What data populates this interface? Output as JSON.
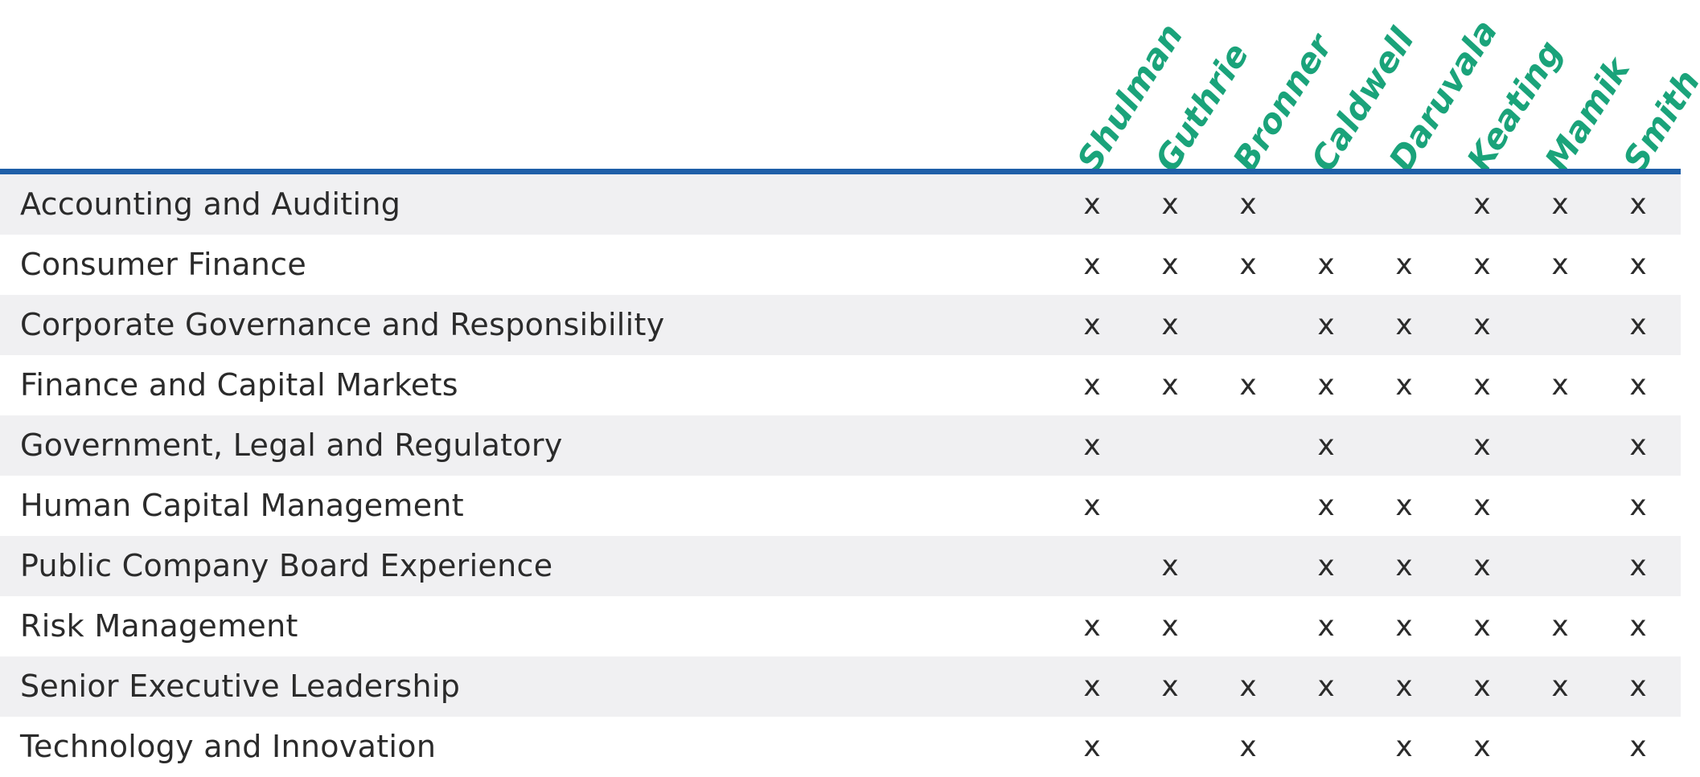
{
  "colors": {
    "header_text": "#1aa37a",
    "rule": "#1f5fa8",
    "stripe": "#f0f0f2",
    "body_text": "#2b2b2b"
  },
  "mark_symbol": "x",
  "directors": [
    "Shulman",
    "Guthrie",
    "Bronner",
    "Caldwell",
    "Daruvala",
    "Keating",
    "Mamik",
    "Smith"
  ],
  "rows": [
    {
      "skill": "Accounting and Auditing",
      "marks": [
        1,
        1,
        1,
        0,
        0,
        1,
        1,
        1
      ]
    },
    {
      "skill": "Consumer Finance",
      "marks": [
        1,
        1,
        1,
        1,
        1,
        1,
        1,
        1
      ]
    },
    {
      "skill": "Corporate Governance and Responsibility",
      "marks": [
        1,
        1,
        0,
        1,
        1,
        1,
        0,
        1
      ]
    },
    {
      "skill": "Finance and Capital Markets",
      "marks": [
        1,
        1,
        1,
        1,
        1,
        1,
        1,
        1
      ]
    },
    {
      "skill": "Government, Legal and Regulatory",
      "marks": [
        1,
        0,
        0,
        1,
        0,
        1,
        0,
        1
      ]
    },
    {
      "skill": "Human Capital Management",
      "marks": [
        1,
        0,
        0,
        1,
        1,
        1,
        0,
        1
      ]
    },
    {
      "skill": "Public Company Board Experience",
      "marks": [
        0,
        1,
        0,
        1,
        1,
        1,
        0,
        1
      ]
    },
    {
      "skill": "Risk Management",
      "marks": [
        1,
        1,
        0,
        1,
        1,
        1,
        1,
        1
      ]
    },
    {
      "skill": "Senior Executive Leadership",
      "marks": [
        1,
        1,
        1,
        1,
        1,
        1,
        1,
        1
      ]
    },
    {
      "skill": "Technology and Innovation",
      "marks": [
        1,
        0,
        1,
        0,
        1,
        1,
        0,
        1
      ]
    }
  ]
}
